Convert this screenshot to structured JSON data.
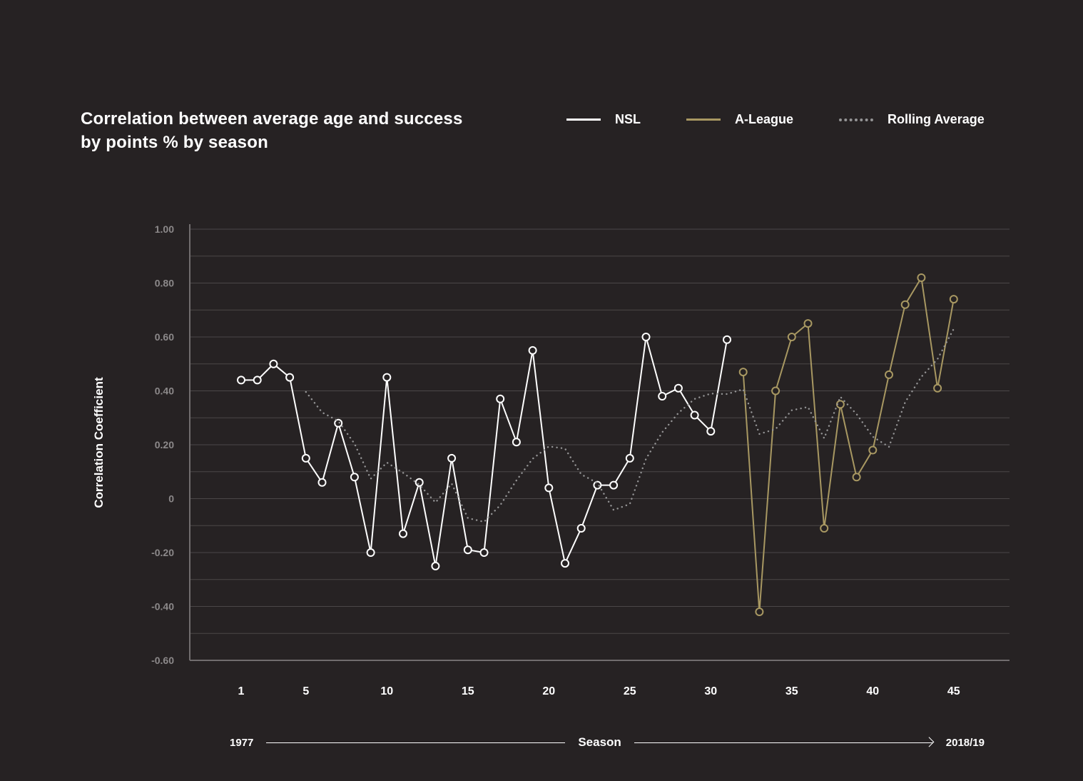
{
  "page": {
    "background": "#262223"
  },
  "header": {
    "title_line1": "Correlation between average age and success",
    "title_line2": "by points % by season"
  },
  "legend": {
    "items": [
      {
        "label": "NSL",
        "color": "#ffffff",
        "style": "solid"
      },
      {
        "label": "A-League",
        "color": "#a89862",
        "style": "solid"
      },
      {
        "label": "Rolling Average",
        "color": "#949495",
        "style": "dotted"
      }
    ]
  },
  "y_axis": {
    "title": "Correlation Coefficient",
    "tick_labels": [
      "1.00",
      "0.80",
      "0.60",
      "0.40",
      "0.20",
      "0",
      "-0.20",
      "-0.40",
      "-0.60"
    ],
    "tick_values": [
      1.0,
      0.8,
      0.6,
      0.4,
      0.2,
      0.0,
      -0.2,
      -0.4,
      -0.6
    ]
  },
  "x_axis": {
    "tick_labels": [
      "1",
      "5",
      "10",
      "15",
      "20",
      "25",
      "30",
      "35",
      "40",
      "45"
    ],
    "tick_values": [
      1,
      5,
      10,
      15,
      20,
      25,
      30,
      35,
      40,
      45
    ],
    "timeline": {
      "start_label": "1977",
      "axis_label": "Season",
      "end_label": "2018/19"
    }
  },
  "colors": {
    "background": "#262223",
    "gridline": "#4b4748",
    "axis_line": "#716d6e",
    "y_tick_text": "#8c898a",
    "x_tick_text": "#ffffff"
  },
  "chart_data": {
    "type": "line",
    "title": "Correlation between average age and success by points % by season",
    "xlabel": "Season",
    "ylabel": "Correlation Coefficient",
    "x_range": [
      1,
      45
    ],
    "ylim": [
      -0.6,
      1.0
    ],
    "grid_step": 0.1,
    "grid": true,
    "legend_position": "top-right",
    "series": [
      {
        "name": "NSL",
        "color": "#ffffff",
        "line_style": "solid",
        "markers": true,
        "start_x": 1,
        "values": [
          0.44,
          0.44,
          0.5,
          0.45,
          0.15,
          0.06,
          0.28,
          0.08,
          -0.2,
          0.45,
          -0.13,
          0.06,
          -0.25,
          0.15,
          -0.19,
          -0.2,
          0.37,
          0.21,
          0.55,
          0.04,
          -0.24,
          -0.11,
          0.05,
          0.05,
          0.15,
          0.6,
          0.38,
          0.41,
          0.31,
          0.25,
          0.59
        ]
      },
      {
        "name": "A-League",
        "color": "#a89862",
        "line_style": "solid",
        "markers": true,
        "start_x": 32,
        "values": [
          0.47,
          -0.42,
          0.4,
          0.6,
          0.65,
          -0.11,
          0.35,
          0.08,
          0.18,
          0.46,
          0.72,
          0.82,
          0.41,
          0.74
        ]
      },
      {
        "name": "Rolling Average",
        "color": "#949495",
        "line_style": "dotted",
        "markers": false,
        "start_x": 5,
        "values": [
          0.396,
          0.32,
          0.288,
          0.204,
          0.074,
          0.134,
          0.096,
          0.052,
          -0.014,
          0.056,
          -0.072,
          -0.086,
          -0.024,
          0.068,
          0.148,
          0.194,
          0.186,
          0.09,
          0.058,
          -0.042,
          -0.02,
          0.148,
          0.246,
          0.318,
          0.37,
          0.39,
          0.388,
          0.406,
          0.24,
          0.258,
          0.328,
          0.34,
          0.224,
          0.378,
          0.314,
          0.23,
          0.192,
          0.358,
          0.452,
          0.518,
          0.63
        ]
      }
    ]
  }
}
